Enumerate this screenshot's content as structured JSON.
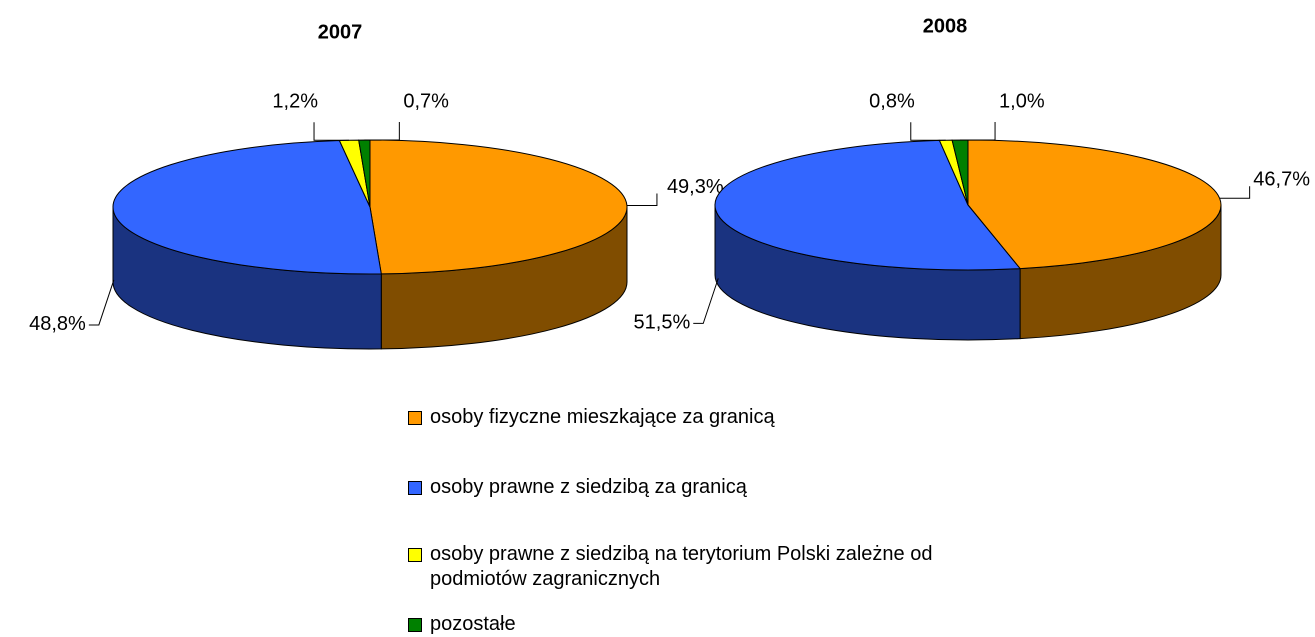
{
  "chart_data": [
    {
      "type": "pie",
      "title": "2007",
      "categories": [
        "osoby fizyczne mieszkające za granicą",
        "osoby prawne z siedzibą za granicą",
        "osoby prawne z siedzibą na terytorium Polski zależne od podmiotów zagranicznych",
        "pozostałe"
      ],
      "values": [
        49.3,
        48.8,
        1.2,
        0.7
      ],
      "value_labels": [
        "49,3%",
        "48,8%",
        "1,2%",
        "0,7%"
      ],
      "colors": [
        "#ff9900",
        "#3366ff",
        "#ffff00",
        "#008000"
      ]
    },
    {
      "type": "pie",
      "title": "2008",
      "categories": [
        "osoby fizyczne mieszkające za granicą",
        "osoby prawne z siedzibą za granicą",
        "osoby prawne z siedzibą na terytorium Polski zależne od podmiotów zagranicznych",
        "pozostałe"
      ],
      "values": [
        46.7,
        51.5,
        0.8,
        1.0
      ],
      "value_labels": [
        "46,7%",
        "51,5%",
        "0,8%",
        "1,0%"
      ],
      "colors": [
        "#ff9900",
        "#3366ff",
        "#ffff00",
        "#008000"
      ]
    }
  ]
}
